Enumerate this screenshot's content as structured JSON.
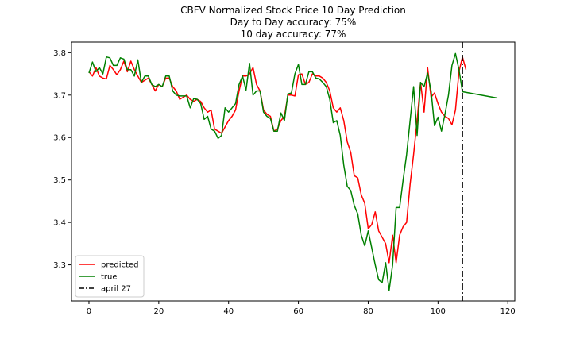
{
  "chart_data": {
    "type": "line",
    "title_lines": [
      "CBFV Normalized Stock Price 10 Day Prediction",
      "Day to Day accuracy: 75%",
      "10 day accuracy: 77%"
    ],
    "xlabel": "",
    "ylabel": "",
    "xlim": [
      -5,
      122
    ],
    "ylim": [
      3.215,
      3.825
    ],
    "x_ticks": [
      0,
      20,
      40,
      60,
      80,
      100,
      120
    ],
    "y_ticks": [
      3.3,
      3.4,
      3.5,
      3.6,
      3.7,
      3.8
    ],
    "x_tick_labels": [
      "0",
      "20",
      "40",
      "60",
      "80",
      "100",
      "120"
    ],
    "y_tick_labels": [
      "3.3",
      "3.4",
      "3.5",
      "3.6",
      "3.7",
      "3.8"
    ],
    "grid": false,
    "legend_position": "lower-left",
    "series": [
      {
        "name": "predicted",
        "color": "#ff0000",
        "x_start": 0,
        "values": [
          3.755,
          3.745,
          3.765,
          3.745,
          3.74,
          3.738,
          3.77,
          3.76,
          3.748,
          3.76,
          3.78,
          3.755,
          3.78,
          3.76,
          3.745,
          3.73,
          3.735,
          3.74,
          3.725,
          3.71,
          3.725,
          3.72,
          3.74,
          3.74,
          3.72,
          3.71,
          3.69,
          3.695,
          3.7,
          3.69,
          3.685,
          3.69,
          3.685,
          3.67,
          3.66,
          3.665,
          3.62,
          3.615,
          3.61,
          3.625,
          3.64,
          3.65,
          3.665,
          3.71,
          3.745,
          3.745,
          3.75,
          3.765,
          3.725,
          3.71,
          3.665,
          3.655,
          3.65,
          3.615,
          3.62,
          3.64,
          3.65,
          3.7,
          3.7,
          3.698,
          3.748,
          3.75,
          3.725,
          3.73,
          3.75,
          3.745,
          3.745,
          3.74,
          3.73,
          3.71,
          3.67,
          3.66,
          3.67,
          3.64,
          3.59,
          3.565,
          3.51,
          3.505,
          3.465,
          3.445,
          3.385,
          3.395,
          3.425,
          3.38,
          3.365,
          3.35,
          3.305,
          3.37,
          3.305,
          3.37,
          3.39,
          3.4,
          3.49,
          3.56,
          3.64,
          3.73,
          3.66,
          3.765,
          3.695,
          3.705,
          3.68,
          3.66,
          3.65,
          3.645,
          3.63,
          3.665,
          3.755,
          3.79,
          3.76
        ]
      },
      {
        "name": "true",
        "color": "#008000",
        "x_start": 0,
        "values": [
          3.752,
          3.778,
          3.755,
          3.765,
          3.75,
          3.79,
          3.788,
          3.77,
          3.77,
          3.788,
          3.785,
          3.76,
          3.76,
          3.745,
          3.783,
          3.73,
          3.745,
          3.745,
          3.725,
          3.72,
          3.725,
          3.72,
          3.745,
          3.745,
          3.71,
          3.7,
          3.698,
          3.698,
          3.698,
          3.67,
          3.692,
          3.69,
          3.68,
          3.643,
          3.65,
          3.62,
          3.615,
          3.598,
          3.605,
          3.67,
          3.66,
          3.67,
          3.68,
          3.725,
          3.745,
          3.712,
          3.775,
          3.7,
          3.71,
          3.71,
          3.66,
          3.65,
          3.645,
          3.615,
          3.615,
          3.658,
          3.64,
          3.703,
          3.705,
          3.75,
          3.772,
          3.725,
          3.725,
          3.755,
          3.755,
          3.74,
          3.738,
          3.73,
          3.72,
          3.69,
          3.635,
          3.64,
          3.605,
          3.535,
          3.485,
          3.475,
          3.44,
          3.42,
          3.37,
          3.345,
          3.38,
          3.34,
          3.3,
          3.265,
          3.258,
          3.305,
          3.24,
          3.3,
          3.435,
          3.435,
          3.5,
          3.56,
          3.64,
          3.72,
          3.605,
          3.73,
          3.72,
          3.752,
          3.71,
          3.628,
          3.648,
          3.615,
          3.655,
          3.7,
          3.77,
          3.798,
          3.76,
          3.708
        ]
      },
      {
        "name": "",
        "color": "#008000",
        "x": [
          107,
          117
        ],
        "values": [
          3.708,
          3.693
        ]
      }
    ],
    "vertical_line": {
      "name": "april 27",
      "x": 107,
      "color": "#000000",
      "style": "dash-dot"
    }
  }
}
